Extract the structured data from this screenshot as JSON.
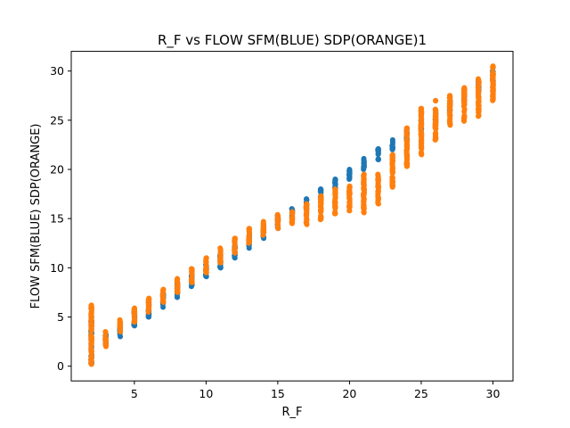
{
  "chart_data": {
    "type": "scatter",
    "title": "R_F vs FLOW SFM(BLUE) SDP(ORANGE)1",
    "xlabel": "R_F",
    "ylabel": "FLOW SFM(BLUE) SDP(ORANGE)",
    "xlim": [
      0.6,
      31.4
    ],
    "ylim": [
      -1.5,
      32
    ],
    "xticks": [
      5,
      10,
      15,
      20,
      25,
      30
    ],
    "yticks": [
      0,
      5,
      10,
      15,
      20,
      25,
      30
    ],
    "grid": false,
    "legend": "none",
    "series": [
      {
        "color": "#1f77b4",
        "x": [
          2,
          3,
          4,
          5,
          6,
          7,
          8,
          9,
          10,
          11,
          12,
          13,
          14,
          15,
          16,
          17,
          18,
          19,
          20,
          21,
          22,
          23,
          24,
          25,
          26,
          27,
          28,
          29,
          30
        ],
        "y_min": [
          0.3,
          2.2,
          3.0,
          4.1,
          5.0,
          6.0,
          7.0,
          8.1,
          9.1,
          10.0,
          11.0,
          12.0,
          13.0,
          14.0,
          15.1,
          16.0,
          17.0,
          18.0,
          19.0,
          20.0,
          21.0,
          22.0,
          23.0,
          24.0,
          25.0,
          26.0,
          27.0,
          28.0,
          29.0
        ],
        "y_max": [
          5.0,
          3.2,
          4.2,
          5.5,
          6.5,
          7.4,
          8.5,
          9.3,
          10.3,
          11.3,
          12.3,
          13.3,
          14.3,
          15.3,
          16.0,
          17.0,
          18.0,
          19.0,
          20.0,
          21.1,
          22.1,
          23.0,
          24.0,
          25.0,
          26.0,
          27.0,
          28.0,
          29.0,
          30.0
        ]
      },
      {
        "color": "#ff7f0e",
        "x": [
          2,
          3,
          4,
          5,
          6,
          7,
          8,
          9,
          10,
          11,
          12,
          13,
          14,
          15,
          16,
          17,
          18,
          19,
          20,
          21,
          22,
          23,
          24,
          25,
          26,
          27,
          28,
          29,
          30
        ],
        "y_min": [
          0.2,
          2.0,
          3.5,
          4.5,
          5.5,
          6.5,
          7.5,
          8.5,
          9.5,
          10.5,
          11.5,
          12.5,
          13.3,
          14.0,
          14.5,
          14.4,
          14.9,
          15.5,
          15.8,
          15.6,
          16.5,
          18.2,
          20.3,
          21.5,
          23.0,
          24.5,
          24.9,
          25.4,
          27.0
        ],
        "y_max": [
          6.2,
          3.5,
          4.7,
          5.9,
          6.9,
          7.8,
          8.9,
          9.9,
          11.0,
          12.0,
          13.0,
          14.0,
          14.7,
          15.4,
          15.7,
          16.5,
          17.3,
          18.0,
          18.3,
          19.5,
          19.5,
          21.5,
          24.2,
          26.2,
          27.0,
          27.5,
          28.3,
          29.2,
          30.5
        ]
      }
    ]
  }
}
